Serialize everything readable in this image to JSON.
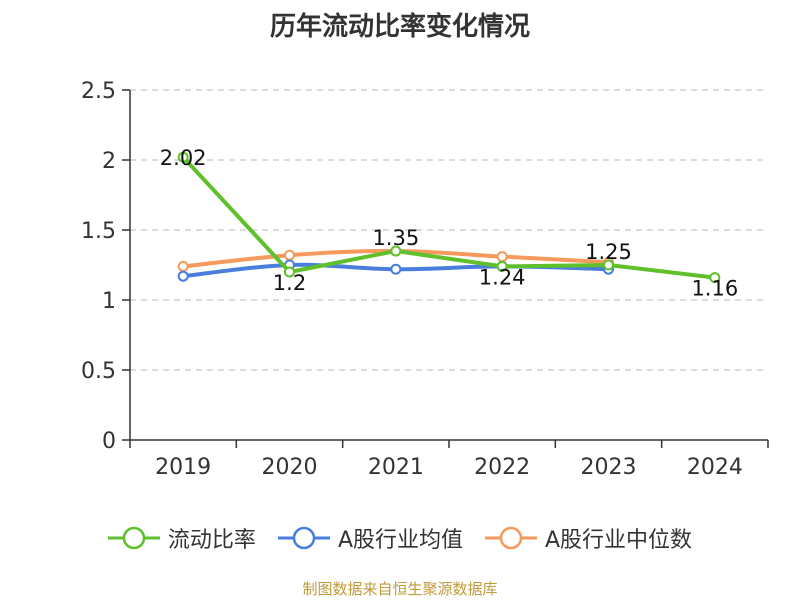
{
  "chart_data": {
    "type": "line",
    "title": "历年流动比率变化情况",
    "categories": [
      "2019",
      "2020",
      "2021",
      "2022",
      "2023",
      "2024"
    ],
    "ylim": [
      0,
      2.5
    ],
    "yticks": [
      "0",
      "0.5",
      "1",
      "1.5",
      "2",
      "2.5"
    ],
    "ytick_values": [
      0,
      0.5,
      1,
      1.5,
      2,
      2.5
    ],
    "grid": true,
    "legend_position": "bottom",
    "series": [
      {
        "name": "流动比率",
        "color": "#5fc02b",
        "values": [
          2.02,
          1.2,
          1.35,
          1.24,
          1.25,
          1.16
        ],
        "labels": [
          "2.02",
          "1.2",
          "1.35",
          "1.24",
          "1.25",
          "1.16"
        ]
      },
      {
        "name": "A股行业均值",
        "color": "#4a7edc",
        "values": [
          1.17,
          1.25,
          1.22,
          1.24,
          1.22,
          null
        ]
      },
      {
        "name": "A股行业中位数",
        "color": "#f59a5c",
        "values": [
          1.24,
          1.32,
          1.35,
          1.31,
          1.27,
          null
        ]
      }
    ]
  },
  "source_note": "制图数据来自恒生聚源数据库",
  "source_note_color": "#c09a3b"
}
